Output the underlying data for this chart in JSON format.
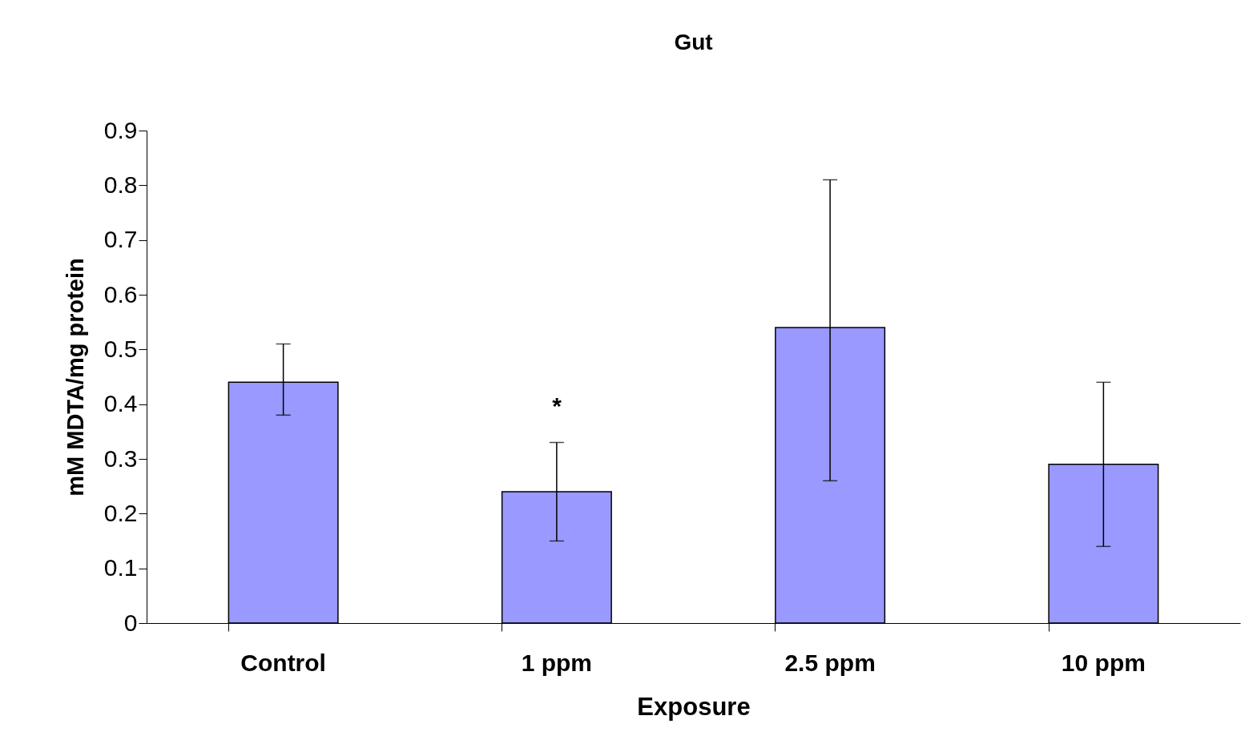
{
  "chart_data": {
    "type": "bar",
    "title": "Gut",
    "xlabel": "Exposure",
    "ylabel": "mM MDTA/mg protein",
    "categories": [
      "Control",
      "1 ppm",
      "2.5 ppm",
      "10 ppm"
    ],
    "values": [
      0.44,
      0.24,
      0.54,
      0.29
    ],
    "errors": [
      [
        0.38,
        0.51
      ],
      [
        0.15,
        0.33
      ],
      [
        0.26,
        0.81
      ],
      [
        0.14,
        0.44
      ]
    ],
    "color": "#9999ff",
    "ylim": [
      0,
      0.9
    ],
    "yticks": [
      0,
      0.1,
      0.2,
      0.3,
      0.4,
      0.5,
      0.6,
      0.7,
      0.8,
      0.9
    ],
    "grid": false,
    "annotations": [
      "*"
    ]
  }
}
